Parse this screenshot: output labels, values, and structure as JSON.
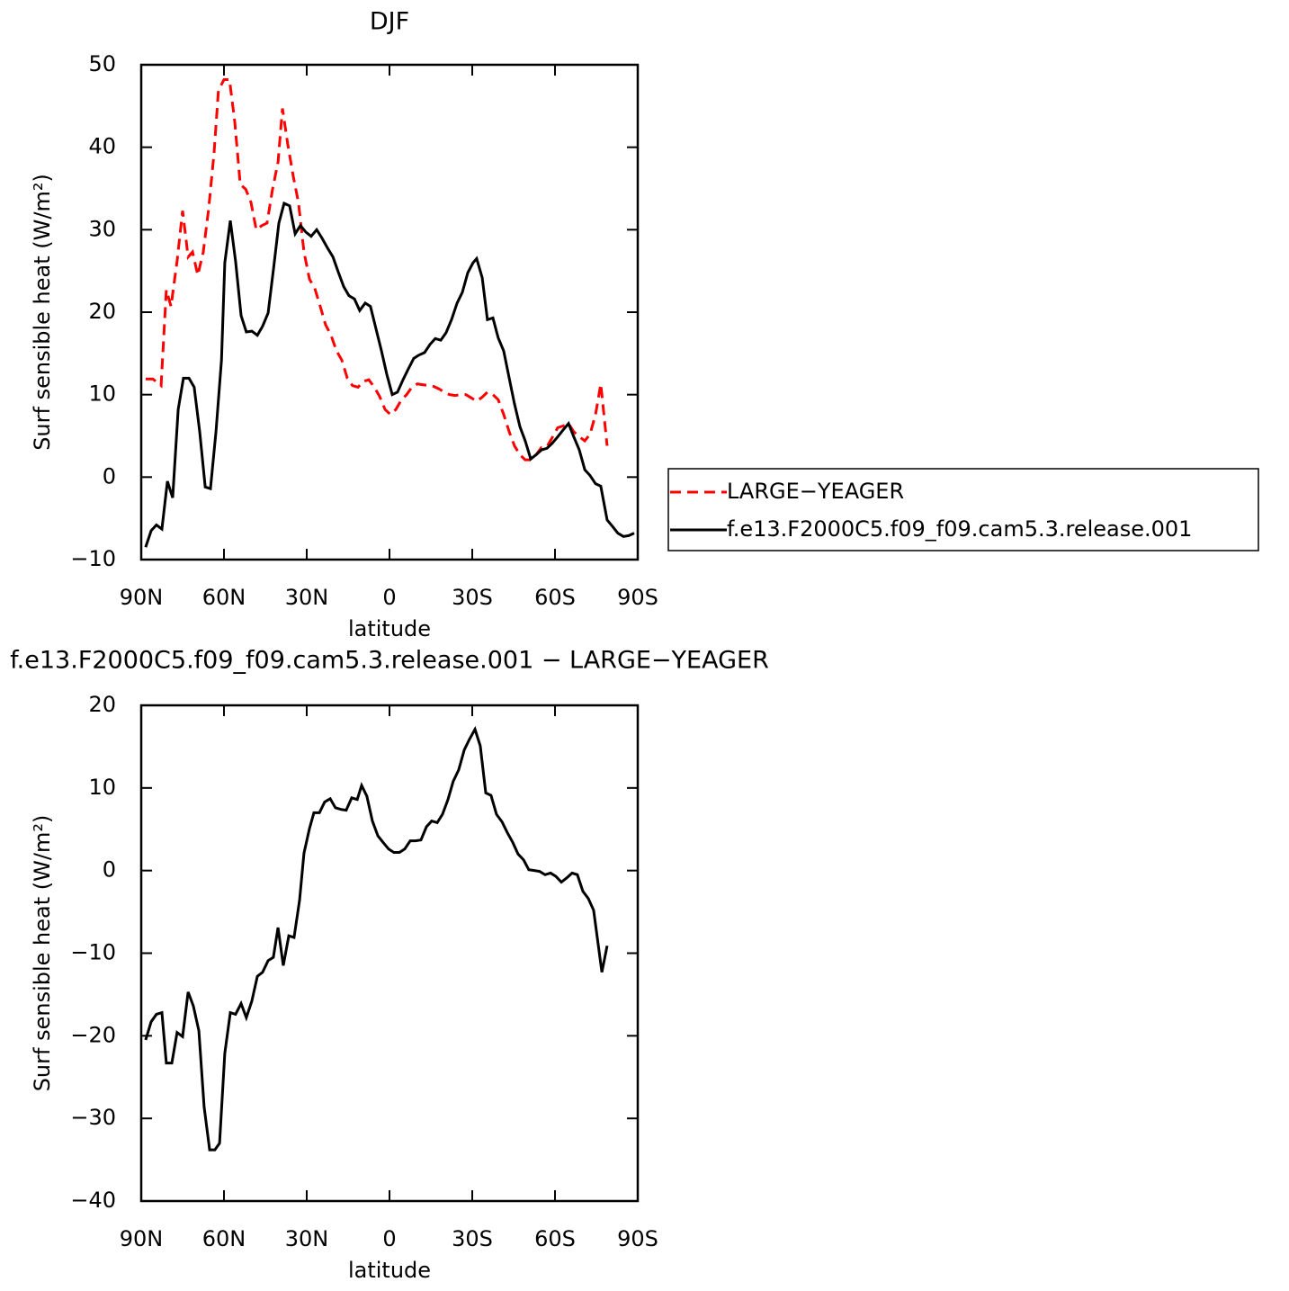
{
  "chart_data": [
    {
      "type": "line",
      "title": "DJF",
      "xlabel": "latitude",
      "ylabel": "Surf sensible heat (W/m²)",
      "xlim": [
        90,
        -90
      ],
      "ylim": [
        -10,
        50
      ],
      "xticks": [
        {
          "value": 90,
          "label": "90N"
        },
        {
          "value": 60,
          "label": "60N"
        },
        {
          "value": 30,
          "label": "30N"
        },
        0,
        {
          "value": -30,
          "label": "30S"
        },
        {
          "value": -60,
          "label": "60S"
        },
        {
          "value": -90,
          "label": "90S"
        }
      ],
      "yticks": [
        {
          "value": -10,
          "label": "−10"
        },
        0,
        10,
        20,
        30,
        40,
        50
      ],
      "legend": "right",
      "series": [
        {
          "name": "LARGE−YEAGER",
          "color": "#ff0000",
          "linestyle": "dashed",
          "x": [
            88.4,
            85.8,
            82.8,
            80.9,
            79.2,
            77,
            75,
            73,
            71.4,
            69.5,
            67.5,
            65.5,
            63.6,
            62,
            60,
            58,
            56.1,
            54.1,
            52.1,
            50.2,
            48.3,
            46.3,
            44.4,
            42.4,
            40.4,
            38.8,
            36.9,
            34.9,
            33,
            31,
            29,
            27.1,
            25.1,
            23.2,
            21.2,
            19.2,
            17.3,
            15.3,
            13.4,
            11.4,
            9.5,
            7.5,
            5.5,
            3.6,
            1.6,
            -0.3,
            -2.3,
            -4.2,
            -6.2,
            -8.1,
            -10.1,
            -12.1,
            -14,
            -16,
            -17.9,
            -19.9,
            -21.8,
            -23.8,
            -25.8,
            -27.7,
            -29.7,
            -31.6,
            -33.6,
            -35.5,
            -37.5,
            -39.4,
            -41.4,
            -43.4,
            -45.3,
            -47.3,
            -49.2,
            -51.2,
            -53.1,
            -55.1,
            -57.1,
            -59,
            -61,
            -62.9,
            -64.9,
            -66.8,
            -68.8,
            -70.8,
            -72.7,
            -74.7,
            -76.6,
            -78.9
          ],
          "values": [
            11.9,
            11.9,
            11.1,
            22.7,
            20.7,
            26.2,
            32.3,
            26.7,
            27.3,
            24.5,
            27.3,
            32.7,
            39.3,
            46.9,
            48.2,
            48.2,
            43.1,
            35.5,
            34.9,
            33.3,
            30,
            30.5,
            30.8,
            34.9,
            38.2,
            44.7,
            40.4,
            36.5,
            33.3,
            27.3,
            24,
            22.9,
            20.7,
            18.5,
            17.2,
            15.3,
            14.2,
            12,
            11.1,
            10.9,
            11.6,
            11.8,
            10.9,
            9.8,
            8.2,
            7.6,
            8.2,
            9.3,
            10,
            10.9,
            11.3,
            11.2,
            11.1,
            11,
            10.7,
            10.3,
            10,
            9.9,
            10,
            10,
            9.6,
            9.2,
            9.7,
            10.3,
            10,
            9.4,
            7.6,
            5.5,
            3.8,
            2.7,
            2.1,
            2.1,
            2.7,
            3.6,
            3.7,
            4.8,
            6,
            6.2,
            6.5,
            5.5,
            4.9,
            4.4,
            5.2,
            7.6,
            11.3,
            3.8
          ]
        },
        {
          "name": "f.e13.F2000C5.f09_f09.cam5.3.release.001",
          "color": "#000000",
          "linestyle": "solid",
          "x": [
            88.4,
            86.4,
            84.5,
            82.5,
            80.5,
            78.6,
            76.6,
            74.7,
            72.7,
            70.8,
            68.8,
            66.8,
            64.9,
            62.9,
            60.9,
            59.7,
            57.7,
            55.8,
            53.8,
            51.9,
            49.9,
            47.9,
            46,
            44,
            42.1,
            40.1,
            38.2,
            36.2,
            34.2,
            32.3,
            30.3,
            28.4,
            26.4,
            24.5,
            22.5,
            20.5,
            18.6,
            16.6,
            14.7,
            12.7,
            10.8,
            8.8,
            6.9,
            4.9,
            2.9,
            1,
            -1,
            -2.9,
            -4.9,
            -6.8,
            -8.8,
            -10.7,
            -12.7,
            -14.7,
            -16.6,
            -18.6,
            -20.5,
            -22.5,
            -24.5,
            -26.4,
            -28.4,
            -30.3,
            -31.6,
            -33.6,
            -35.5,
            -37.5,
            -39.4,
            -41.4,
            -43.4,
            -45.3,
            -47.3,
            -49.2,
            -51.2,
            -53.1,
            -55.1,
            -57.1,
            -59,
            -61,
            -62.9,
            -64.9,
            -66.8,
            -68.8,
            -70.8,
            -72.7,
            -74.7,
            -76.6,
            -78.9,
            -80.9,
            -82.8,
            -84.8,
            -86.7,
            -88.7
          ],
          "values": [
            -8.5,
            -6.5,
            -5.8,
            -6.3,
            -0.5,
            -2.5,
            8.2,
            12,
            12,
            10.9,
            5.5,
            -1.2,
            -1.4,
            5.5,
            14.2,
            26,
            31.1,
            26.2,
            19.6,
            17.6,
            17.7,
            17.2,
            18.3,
            19.9,
            25.1,
            30.8,
            33.2,
            32.9,
            29.5,
            30.5,
            29.7,
            29.2,
            30,
            29,
            27.8,
            26.7,
            24.9,
            23.1,
            22,
            21.6,
            20.2,
            21.1,
            20.7,
            18,
            15.3,
            12.5,
            10,
            10.3,
            11.8,
            13.1,
            14.4,
            14.8,
            15.1,
            16.1,
            16.8,
            16.6,
            17.5,
            19.1,
            21.1,
            22.4,
            24.8,
            26,
            26.5,
            24.2,
            19.1,
            19.3,
            16.9,
            15.3,
            12,
            8.9,
            6.1,
            4.4,
            2.2,
            2.7,
            3.3,
            3.5,
            4.1,
            4.9,
            5.7,
            6.5,
            4.9,
            3.3,
            0.9,
            0.2,
            -0.8,
            -1.1,
            -5.2,
            -6,
            -6.8,
            -7.2,
            -7.1,
            -6.8
          ]
        }
      ]
    },
    {
      "type": "line",
      "title": "f.e13.F2000C5.f09_f09.cam5.3.release.001 − LARGE−YEAGER",
      "xlabel": "latitude",
      "ylabel": "Surf sensible heat (W/m²)",
      "xlim": [
        90,
        -90
      ],
      "ylim": [
        -40,
        20
      ],
      "xticks": [
        {
          "value": 90,
          "label": "90N"
        },
        {
          "value": 60,
          "label": "60N"
        },
        {
          "value": 30,
          "label": "30N"
        },
        0,
        {
          "value": -30,
          "label": "30S"
        },
        {
          "value": -60,
          "label": "60S"
        },
        {
          "value": -90,
          "label": "90S"
        }
      ],
      "yticks": [
        {
          "value": -40,
          "label": "−40"
        },
        {
          "value": -30,
          "label": "−30"
        },
        {
          "value": -20,
          "label": "−20"
        },
        {
          "value": -10,
          "label": "−10"
        },
        0,
        10,
        20
      ],
      "series": [
        {
          "color": "#000000",
          "linestyle": "solid",
          "x": [
            88.4,
            86.4,
            84.5,
            82.5,
            80.9,
            78.9,
            77,
            75,
            73,
            71.1,
            69.1,
            67.2,
            65.2,
            63.3,
            61.6,
            59.7,
            57.7,
            55.8,
            53.8,
            51.9,
            49.9,
            47.9,
            46,
            44,
            42.1,
            40.4,
            38.5,
            36.5,
            34.6,
            32.6,
            31,
            29,
            27.4,
            25.4,
            23.5,
            21.5,
            19.6,
            17.6,
            15.7,
            13.7,
            11.7,
            10.1,
            8.2,
            6.2,
            4.2,
            2.3,
            0.3,
            -1.6,
            -3.6,
            -5.5,
            -7.5,
            -9.4,
            -11.4,
            -13.4,
            -15.3,
            -17.3,
            -19.2,
            -21.2,
            -23.1,
            -25.1,
            -27.1,
            -29,
            -31,
            -32.9,
            -34.9,
            -36.8,
            -38.8,
            -40.8,
            -42.7,
            -44.7,
            -46.6,
            -48.6,
            -50.5,
            -52.5,
            -54.4,
            -56.4,
            -58.4,
            -60.3,
            -62.3,
            -64.2,
            -66.2,
            -68.1,
            -70.1,
            -72.1,
            -74,
            -77,
            -78.9
          ],
          "values": [
            -20.5,
            -18.3,
            -17.4,
            -17.2,
            -23.3,
            -23.3,
            -19.6,
            -20.1,
            -14.7,
            -16.4,
            -19.4,
            -28.6,
            -33.8,
            -33.8,
            -33,
            -22.1,
            -17.2,
            -17.4,
            -16.1,
            -17.8,
            -15.8,
            -12.8,
            -12.3,
            -10.9,
            -10.5,
            -6.9,
            -11.5,
            -7.9,
            -8.1,
            -3.6,
            2.1,
            5.1,
            7,
            7,
            8.3,
            8.7,
            7.6,
            7.4,
            7.3,
            8.8,
            8.6,
            10.3,
            9,
            6,
            4.2,
            3.4,
            2.6,
            2.2,
            2.2,
            2.6,
            3.6,
            3.6,
            3.7,
            5.3,
            6,
            5.8,
            6.8,
            8.6,
            10.8,
            12.2,
            14.6,
            15.9,
            17.1,
            15.1,
            9.4,
            9.1,
            6.8,
            5.9,
            4.6,
            3.4,
            2,
            1.3,
            0.1,
            0,
            -0.1,
            -0.5,
            -0.3,
            -0.7,
            -1.4,
            -0.9,
            -0.3,
            -0.5,
            -2.5,
            -3.4,
            -4.8,
            -12.3,
            -9.1
          ]
        }
      ]
    }
  ]
}
